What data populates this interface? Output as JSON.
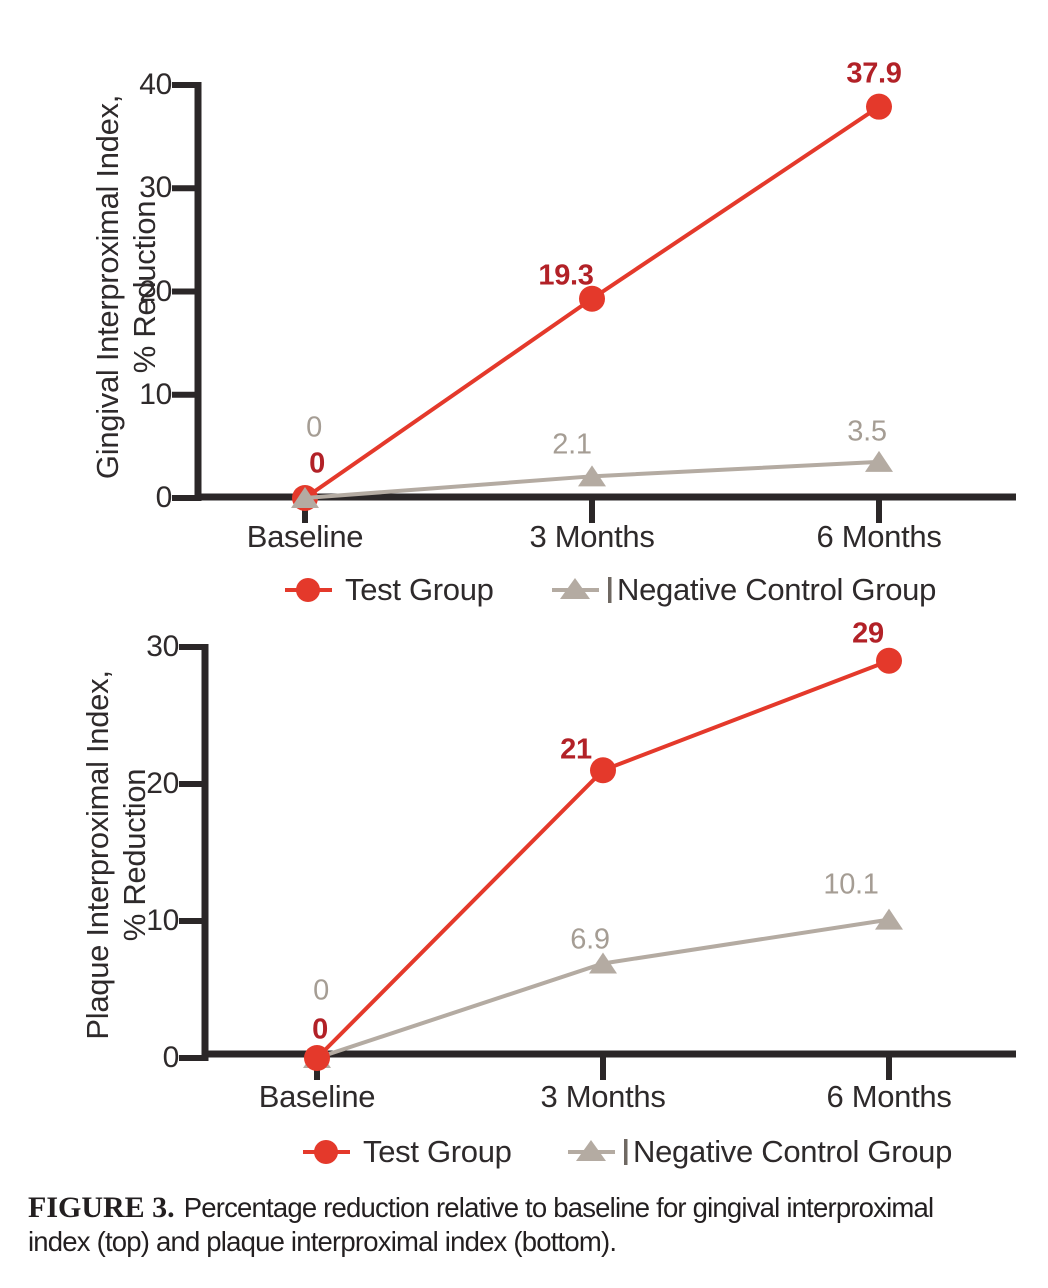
{
  "figure": {
    "caption_label": "FIGURE 3.",
    "caption_line1": "Percentage reduction relative to baseline for gingival interproximal",
    "caption_line2": "index (top) and plaque interproximal index (bottom)."
  },
  "colors": {
    "test_series": "#e4392b",
    "test_value_labels": "#b22127",
    "control_series": "#b4aba2",
    "control_value_labels": "#a59d94",
    "axis": "#2b2728",
    "text": "#2e2a2b",
    "legend_tick": "#6f6862"
  },
  "chart_data": [
    {
      "type": "line",
      "ylabel_lines": [
        "Gingival Interproximal Index,",
        "% Reduction"
      ],
      "categories": [
        "Baseline",
        "3 Months",
        "6 Months"
      ],
      "yticks": [
        0,
        10,
        20,
        30,
        40
      ],
      "ylim": [
        0,
        40
      ],
      "grid": false,
      "legend_position": "bottom",
      "series": [
        {
          "name": "Test Group",
          "marker": "circle",
          "values": [
            0,
            19.3,
            37.9
          ],
          "value_labels": [
            "0",
            "19.3",
            "37.9"
          ]
        },
        {
          "name": "Negative Control Group",
          "marker": "triangle",
          "values": [
            0,
            2.1,
            3.5
          ],
          "value_labels": [
            "0",
            "2.1",
            "3.5"
          ]
        }
      ]
    },
    {
      "type": "line",
      "ylabel_lines": [
        "Plaque Interproximal Index,",
        "% Reduction"
      ],
      "categories": [
        "Baseline",
        "3 Months",
        "6 Months"
      ],
      "yticks": [
        0,
        10,
        20,
        30
      ],
      "ylim": [
        0,
        30
      ],
      "grid": false,
      "legend_position": "bottom",
      "series": [
        {
          "name": "Test Group",
          "marker": "circle",
          "values": [
            0,
            21,
            29
          ],
          "value_labels": [
            "0",
            "21",
            "29"
          ]
        },
        {
          "name": "Negative Control Group",
          "marker": "triangle",
          "values": [
            0,
            6.9,
            10.1
          ],
          "value_labels": [
            "0",
            "6.9",
            "10.1"
          ]
        }
      ]
    }
  ]
}
